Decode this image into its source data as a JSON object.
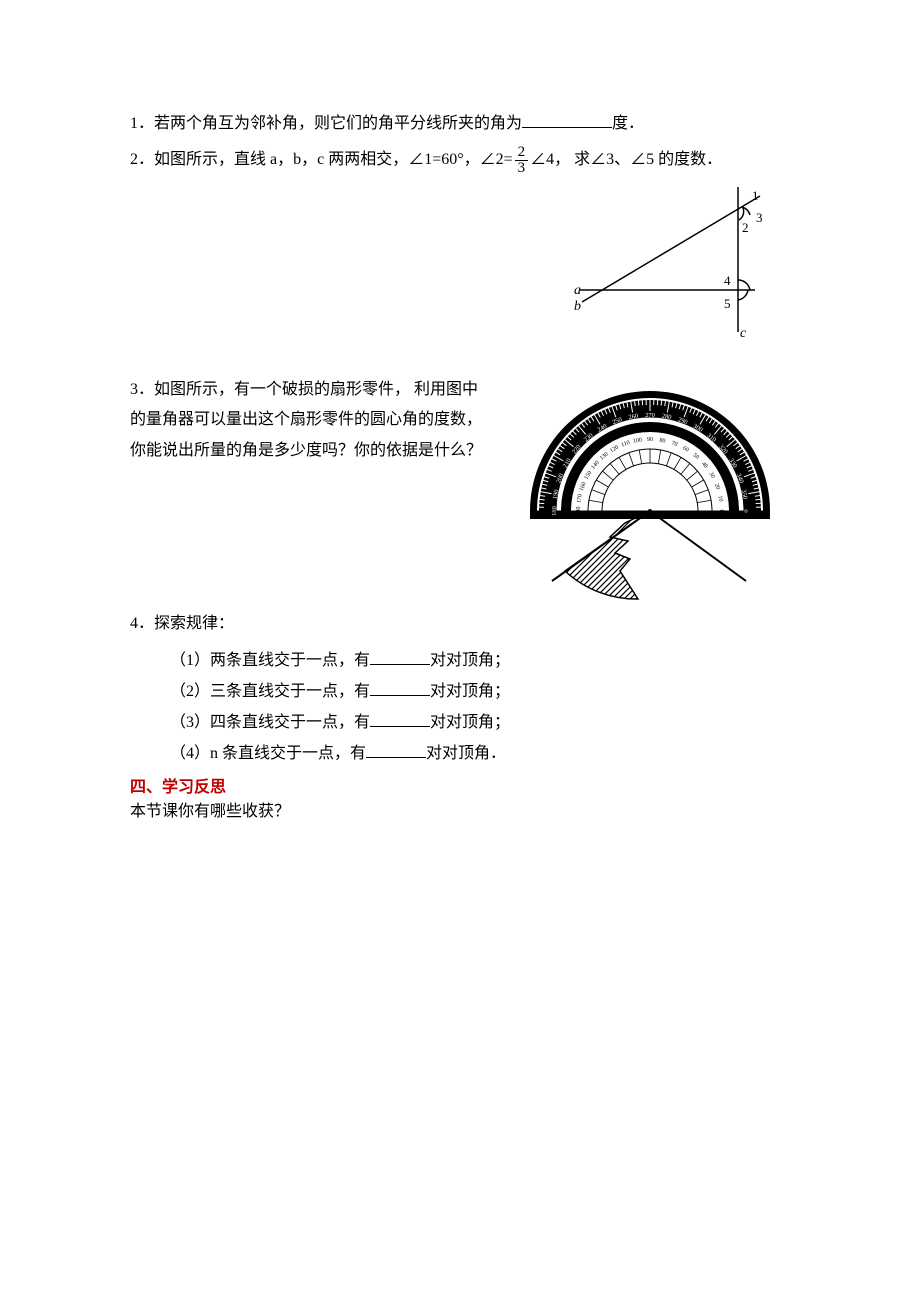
{
  "q1": {
    "num": "1．",
    "text_a": "若两个角互为邻补角，则它们的角平分线所夹的角为",
    "text_b": "度．"
  },
  "q2": {
    "num": "2．",
    "text_a": "如图所示，直线 a，b，c 两两相交，∠1=60°，∠2=",
    "frac_num": "2",
    "frac_den": "3",
    "text_b": "∠4，  求∠3、∠5 的度数．",
    "labels": {
      "a": "a",
      "b": "b",
      "c": "c",
      "n1": "1",
      "n2": "2",
      "n3": "3",
      "n4": "4",
      "n5": "5"
    }
  },
  "q3": {
    "num": "3．",
    "text": "如图所示，有一个破损的扇形零件，  利用图中的量角器可以量出这个扇形零件的圆心角的度数，你能说出所量的角是多少度吗？你的依据是什么？",
    "protractor_ticks": [
      "180",
      "190",
      "200",
      "210",
      "220",
      "230",
      "240",
      "250",
      "260",
      "270",
      "280",
      "290",
      "300",
      "310",
      "320",
      "330",
      "340",
      "350",
      "0"
    ],
    "inner_ticks": [
      "180",
      "170",
      "160",
      "150",
      "140",
      "130",
      "120",
      "110",
      "100",
      "90",
      "80",
      "70",
      "60",
      "50",
      "40",
      "30",
      "20",
      "10",
      "0"
    ]
  },
  "q4": {
    "num": "4．",
    "title": "探索规律：",
    "items": [
      {
        "pre": "（1）两条直线交于一点，有",
        "post": "对对顶角；"
      },
      {
        "pre": "（2）三条直线交于一点，有",
        "post": "对对顶角；"
      },
      {
        "pre": "（3）四条直线交于一点，有",
        "post": "对对顶角；"
      },
      {
        "pre": "（4）n 条直线交于一点，有",
        "post": "对对顶角．"
      }
    ]
  },
  "section": {
    "title": "四、学习反思",
    "body": "本节课你有哪些收获？"
  },
  "style": {
    "text_color": "#000000",
    "accent_color": "#c00000",
    "background": "#ffffff",
    "font_size_pt": 12
  }
}
